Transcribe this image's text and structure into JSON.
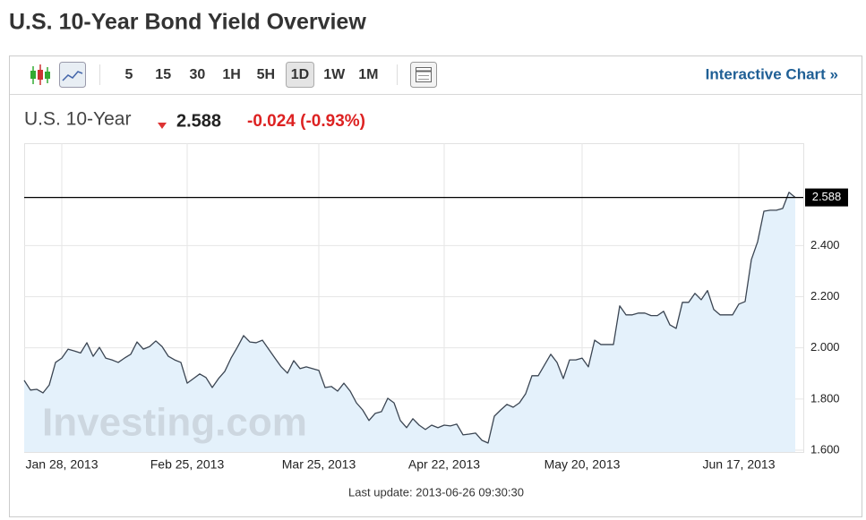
{
  "header": {
    "title": "U.S. 10-Year Bond Yield Overview"
  },
  "toolbar": {
    "intervals": [
      "5",
      "15",
      "30",
      "1H",
      "5H",
      "1D",
      "1W",
      "1M"
    ],
    "selected": "1D",
    "link": "Interactive Chart »"
  },
  "quote": {
    "name": "U.S. 10-Year",
    "price": "2.588",
    "change": "-0.024 (-0.93%)"
  },
  "footer": {
    "last_update": "Last update: 2013-06-26 09:30:30"
  },
  "chart_data": {
    "type": "area",
    "watermark": "Investing.com",
    "color": "#3b4552",
    "fill": "#e4f1fb",
    "grid": true,
    "y_axis_side": "right",
    "categories": [
      null,
      null,
      null,
      null,
      null,
      null,
      "Jan 28, 2013",
      null,
      null,
      null,
      null,
      null,
      null,
      null,
      null,
      null,
      null,
      null,
      null,
      null,
      null,
      null,
      null,
      null,
      null,
      null,
      "Feb 25, 2013",
      null,
      null,
      null,
      null,
      null,
      null,
      null,
      null,
      null,
      null,
      null,
      null,
      null,
      null,
      null,
      null,
      null,
      null,
      null,
      null,
      "Mar 25, 2013",
      null,
      null,
      null,
      null,
      null,
      null,
      null,
      null,
      null,
      null,
      null,
      null,
      null,
      null,
      null,
      null,
      null,
      null,
      null,
      "Apr 22, 2013",
      null,
      null,
      null,
      null,
      null,
      null,
      null,
      null,
      null,
      null,
      null,
      null,
      null,
      null,
      null,
      null,
      null,
      null,
      null,
      null,
      null,
      "May 20, 2013",
      null,
      null,
      null,
      null,
      null,
      null,
      null,
      null,
      null,
      null,
      null,
      null,
      null,
      null,
      null,
      null,
      null,
      null,
      null,
      null,
      null,
      null,
      null,
      null,
      "Jun 17, 2013",
      null,
      null,
      null,
      null,
      null,
      null,
      null,
      null,
      null
    ],
    "values": [
      1.873,
      1.835,
      1.838,
      1.824,
      1.855,
      1.943,
      1.96,
      1.995,
      1.988,
      1.98,
      2.02,
      1.967,
      2.002,
      1.96,
      1.953,
      1.943,
      1.96,
      1.975,
      2.023,
      1.995,
      2.005,
      2.027,
      2.005,
      1.967,
      1.953,
      1.943,
      1.862,
      1.88,
      1.898,
      1.884,
      1.845,
      1.88,
      1.908,
      1.96,
      2.002,
      2.048,
      2.023,
      2.02,
      2.03,
      1.995,
      1.96,
      1.926,
      1.901,
      1.95,
      1.919,
      1.926,
      1.919,
      1.912,
      1.845,
      1.849,
      1.831,
      1.862,
      1.831,
      1.785,
      1.757,
      1.716,
      1.744,
      1.751,
      1.803,
      1.785,
      1.716,
      1.688,
      1.723,
      1.698,
      1.681,
      1.698,
      1.688,
      1.698,
      1.695,
      1.702,
      1.66,
      1.663,
      1.667,
      1.639,
      1.628,
      1.733,
      1.757,
      1.779,
      1.768,
      1.785,
      1.821,
      1.891,
      1.891,
      1.933,
      1.975,
      1.943,
      1.88,
      1.953,
      1.953,
      1.96,
      1.926,
      2.03,
      2.013,
      2.013,
      2.013,
      2.164,
      2.129,
      2.129,
      2.136,
      2.136,
      2.126,
      2.126,
      2.143,
      2.09,
      2.076,
      2.178,
      2.178,
      2.213,
      2.188,
      2.224,
      2.15,
      2.129,
      2.129,
      2.129,
      2.171,
      2.181,
      2.345,
      2.415,
      2.534,
      2.538,
      2.538,
      2.545,
      2.608,
      2.588
    ],
    "ylim": [
      1.6,
      2.8
    ],
    "yticks": [
      {
        "value": 1.6,
        "label": "1.600"
      },
      {
        "value": 1.8,
        "label": "1.800"
      },
      {
        "value": 2.0,
        "label": "2.000"
      },
      {
        "value": 2.2,
        "label": "2.200"
      },
      {
        "value": 2.4,
        "label": "2.400"
      }
    ]
  }
}
